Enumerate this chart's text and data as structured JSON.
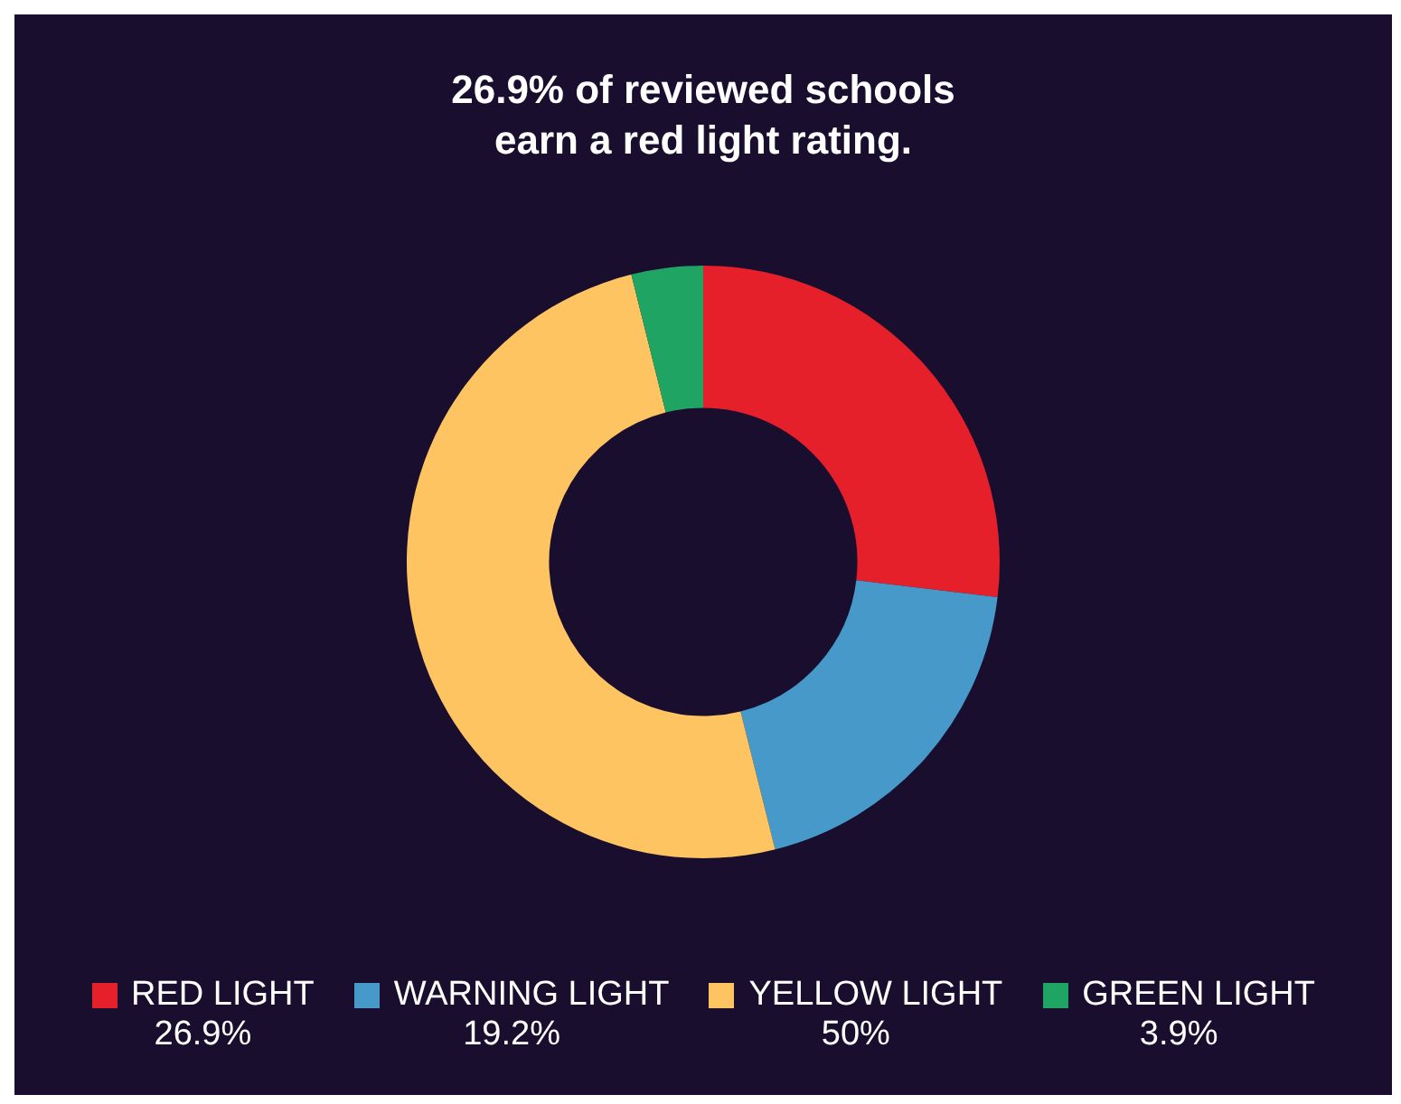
{
  "chart_data": {
    "type": "donut",
    "title": "26.9% of reviewed schools\nearn a red light rating.",
    "categories": [
      "RED LIGHT",
      "WARNING LIGHT",
      "YELLOW LIGHT",
      "GREEN LIGHT"
    ],
    "values": [
      26.9,
      19.2,
      50,
      3.9
    ],
    "colors": [
      "#e5202a",
      "#4699c9",
      "#fec461",
      "#1fa463"
    ],
    "value_labels": [
      "26.9%",
      "19.2%",
      "50%",
      "3.9%"
    ],
    "legend": "bottom"
  }
}
